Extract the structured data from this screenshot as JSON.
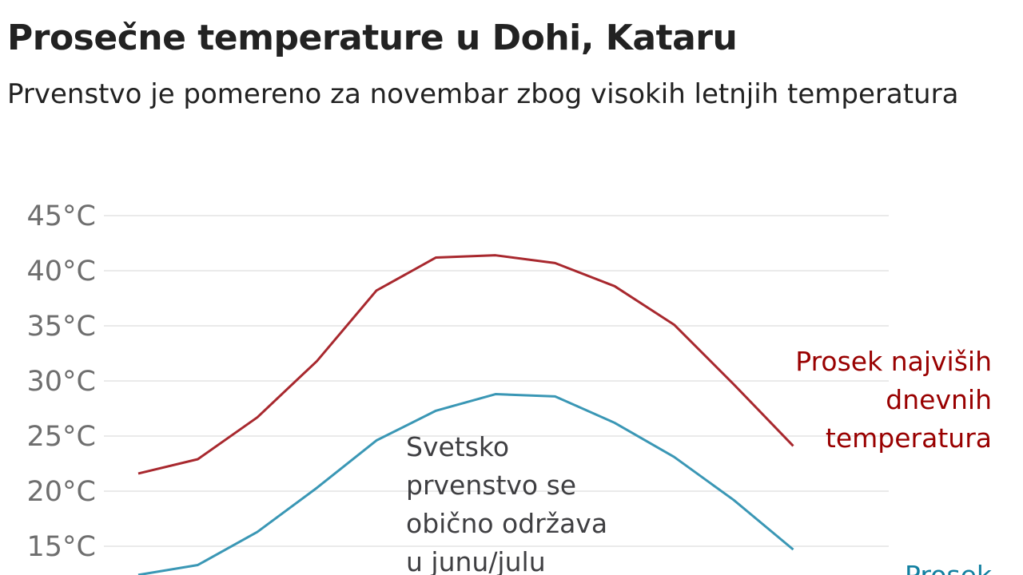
{
  "title": "Prosečne temperature u Dohi, Kataru",
  "subtitle": "Prvenstvo je pomereno za novembar zbog visokih letnjih temperatura",
  "chart_data": {
    "type": "line",
    "title": "Prosečne temperature u Dohi, Kataru",
    "subtitle": "Prvenstvo je pomereno za novembar zbog visokih letnjih temperatura",
    "x": [
      1,
      2,
      3,
      4,
      5,
      6,
      7,
      8,
      9,
      10,
      11,
      12
    ],
    "ylim": [
      15,
      45
    ],
    "yticks": [
      45,
      40,
      35,
      30,
      25,
      20,
      15
    ],
    "ytick_labels": [
      "45°C",
      "40°C",
      "35°C",
      "30°C",
      "25°C",
      "20°C",
      "15°C"
    ],
    "grid": true,
    "series": [
      {
        "name": "Prosek najviših dnevnih temperatura",
        "name_lines": [
          "Prosek najviših",
          "dnevnih",
          "temperatura"
        ],
        "color": "#a8282e",
        "label_color": "#990000",
        "values": [
          21.6,
          22.9,
          26.7,
          31.8,
          38.2,
          41.2,
          41.4,
          40.7,
          38.6,
          35.1,
          29.7,
          24.1
        ]
      },
      {
        "name": "Prosek",
        "name_lines": [
          "Prosek"
        ],
        "color": "#3a97b5",
        "label_color": "#1380a1",
        "values": [
          12.4,
          13.3,
          16.3,
          20.3,
          24.6,
          27.3,
          28.8,
          28.6,
          26.2,
          23.1,
          19.2,
          14.7
        ]
      }
    ],
    "annotation": {
      "lines": [
        "Svetsko",
        "prvenstvo se",
        "obično održava",
        "u junu/julu"
      ]
    }
  }
}
